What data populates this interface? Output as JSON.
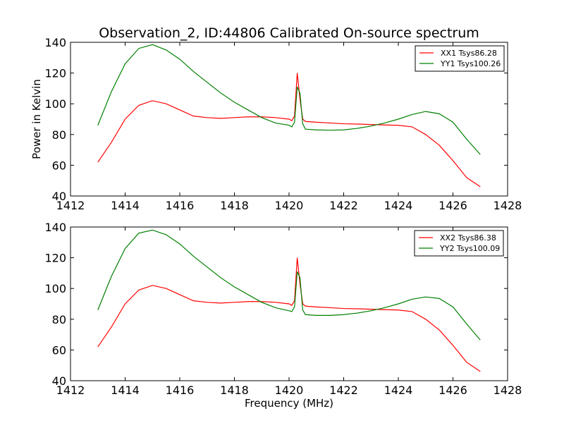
{
  "figure": {
    "title": "Observation_2, ID:44806 Calibrated On-source spectrum"
  },
  "chart_data": [
    {
      "type": "line",
      "xlabel": "",
      "ylabel": "Power in Kelvin",
      "xlim": [
        1412,
        1428
      ],
      "ylim": [
        40,
        140
      ],
      "xticks": [
        "1412",
        "1414",
        "1416",
        "1418",
        "1420",
        "1422",
        "1424",
        "1426",
        "1428"
      ],
      "yticks": [
        "40",
        "60",
        "80",
        "100",
        "120",
        "140"
      ],
      "legend_position": "top-right",
      "series": [
        {
          "name": "XX1 Tsys86.28",
          "color": "#ff0000",
          "x": [
            1413.0,
            1413.5,
            1414.0,
            1414.5,
            1415.0,
            1415.5,
            1416.0,
            1416.5,
            1417.0,
            1417.5,
            1418.0,
            1418.5,
            1419.0,
            1419.5,
            1420.0,
            1420.1,
            1420.2,
            1420.3,
            1420.4,
            1420.5,
            1420.6,
            1421.0,
            1421.5,
            1422.0,
            1422.5,
            1423.0,
            1423.5,
            1424.0,
            1424.5,
            1425.0,
            1425.5,
            1426.0,
            1426.5,
            1427.0
          ],
          "y": [
            62,
            75,
            90,
            99,
            102,
            100,
            96,
            92,
            91,
            90.5,
            91,
            91.5,
            91.5,
            91,
            90,
            89,
            92,
            120,
            103,
            90,
            88.5,
            88,
            87.5,
            87,
            86.8,
            86.5,
            86.2,
            86,
            85,
            80,
            73,
            63,
            52,
            46
          ]
        },
        {
          "name": "YY1 Tsys100.26",
          "color": "#008000",
          "x": [
            1413.0,
            1413.5,
            1414.0,
            1414.5,
            1415.0,
            1415.5,
            1416.0,
            1416.5,
            1417.0,
            1417.5,
            1418.0,
            1418.5,
            1419.0,
            1419.5,
            1420.0,
            1420.1,
            1420.2,
            1420.3,
            1420.4,
            1420.5,
            1420.6,
            1421.0,
            1421.5,
            1422.0,
            1422.5,
            1423.0,
            1423.5,
            1424.0,
            1424.5,
            1425.0,
            1425.5,
            1426.0,
            1426.5,
            1427.0
          ],
          "y": [
            86,
            108,
            126,
            136,
            138.5,
            135,
            129,
            121,
            114,
            107,
            101,
            96,
            91,
            87.5,
            86,
            85,
            88,
            111,
            107,
            87,
            83.5,
            83,
            82.8,
            83,
            84,
            85.5,
            87.5,
            90,
            93,
            95,
            93.5,
            88,
            77,
            67
          ]
        }
      ]
    },
    {
      "type": "line",
      "xlabel": "Frequency (MHz)",
      "ylabel": "",
      "xlim": [
        1412,
        1428
      ],
      "ylim": [
        40,
        140
      ],
      "xticks": [
        "1412",
        "1414",
        "1416",
        "1418",
        "1420",
        "1422",
        "1424",
        "1426",
        "1428"
      ],
      "yticks": [
        "40",
        "60",
        "80",
        "100",
        "120",
        "140"
      ],
      "legend_position": "top-right",
      "series": [
        {
          "name": "XX2 Tsys86.38",
          "color": "#ff0000",
          "x": [
            1413.0,
            1413.5,
            1414.0,
            1414.5,
            1415.0,
            1415.5,
            1416.0,
            1416.5,
            1417.0,
            1417.5,
            1418.0,
            1418.5,
            1419.0,
            1419.5,
            1420.0,
            1420.1,
            1420.2,
            1420.3,
            1420.4,
            1420.5,
            1420.6,
            1421.0,
            1421.5,
            1422.0,
            1422.5,
            1423.0,
            1423.5,
            1424.0,
            1424.5,
            1425.0,
            1425.5,
            1426.0,
            1426.5,
            1427.0
          ],
          "y": [
            62,
            75,
            90,
            99,
            102,
            100,
            96,
            92,
            91,
            90.5,
            91,
            91.5,
            91.5,
            91,
            90,
            89,
            92,
            120,
            103,
            90,
            88.5,
            88,
            87.5,
            87,
            86.8,
            86.5,
            86.2,
            86,
            85,
            80,
            73,
            63,
            52,
            46
          ]
        },
        {
          "name": "YY2 Tsys100.09",
          "color": "#008000",
          "x": [
            1413.0,
            1413.5,
            1414.0,
            1414.5,
            1415.0,
            1415.5,
            1416.0,
            1416.5,
            1417.0,
            1417.5,
            1418.0,
            1418.5,
            1419.0,
            1419.5,
            1420.0,
            1420.1,
            1420.2,
            1420.3,
            1420.4,
            1420.5,
            1420.6,
            1421.0,
            1421.5,
            1422.0,
            1422.5,
            1423.0,
            1423.5,
            1424.0,
            1424.5,
            1425.0,
            1425.5,
            1426.0,
            1426.5,
            1427.0
          ],
          "y": [
            86,
            108,
            126,
            136,
            138,
            135,
            129,
            121,
            114,
            107,
            101,
            96,
            91,
            87.5,
            85.5,
            85,
            88,
            111,
            107,
            86,
            83,
            82.5,
            82.5,
            83,
            84,
            85.5,
            87.5,
            90,
            93,
            94.5,
            93.5,
            88,
            77,
            66.5
          ]
        }
      ]
    }
  ]
}
